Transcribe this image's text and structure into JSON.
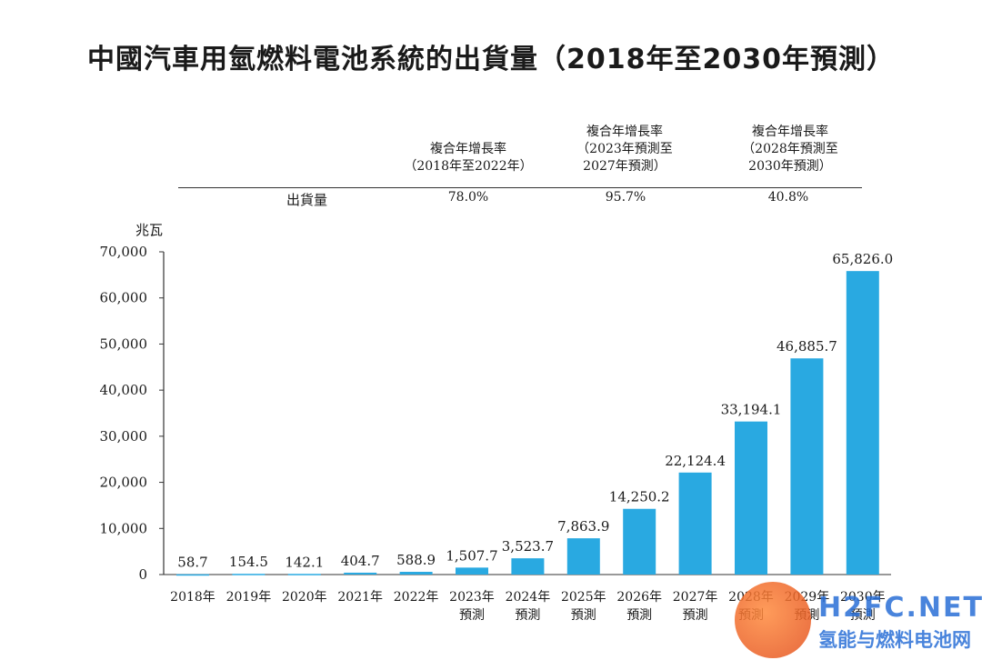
{
  "title": "中國汽車用氫燃料電池系統的出貨量（2018年至2030年預測）",
  "table": {
    "row_label": "出貨量",
    "columns": [
      {
        "header": "複合年增長率\n（2018年至2022年）",
        "value": "78.0%"
      },
      {
        "header": "複合年增長率\n（2023年預測至\n2027年預測）",
        "value": "95.7%"
      },
      {
        "header": "複合年增長率\n（2028年預測至\n2030年預測）",
        "value": "40.8%"
      }
    ]
  },
  "chart_data": {
    "type": "bar",
    "title": "中國汽車用氫燃料電池系統的出貨量（2018年至2030年預測）",
    "ylabel": "兆瓦",
    "xlabel": "",
    "ylim": [
      0,
      70000
    ],
    "yticks": [
      "0",
      "10,000",
      "20,000",
      "30,000",
      "40,000",
      "50,000",
      "60,000",
      "70,000"
    ],
    "grid": false,
    "bar_color": "#29a9e1",
    "categories": [
      "2018年",
      "2019年",
      "2020年",
      "2021年",
      "2022年",
      "2023年\n預測",
      "2024年\n預測",
      "2025年\n預測",
      "2026年\n預測",
      "2027年\n預測",
      "2028年\n預測",
      "2029年\n預測",
      "2030年\n預測"
    ],
    "values": [
      58.7,
      154.5,
      142.1,
      404.7,
      588.9,
      1507.7,
      3523.7,
      7863.9,
      14250.2,
      22124.4,
      33194.1,
      46885.7,
      65826.0
    ],
    "value_labels": [
      "58.7",
      "154.5",
      "142.1",
      "404.7",
      "588.9",
      "1,507.7",
      "3,523.7",
      "7,863.9",
      "14,250.2",
      "22,124.4",
      "33,194.1",
      "46,885.7",
      "65,826.0"
    ]
  },
  "watermark": {
    "brand": "H2FC.NET",
    "subtitle": "氢能与燃料电池网",
    "color": "#2a6fd6"
  }
}
